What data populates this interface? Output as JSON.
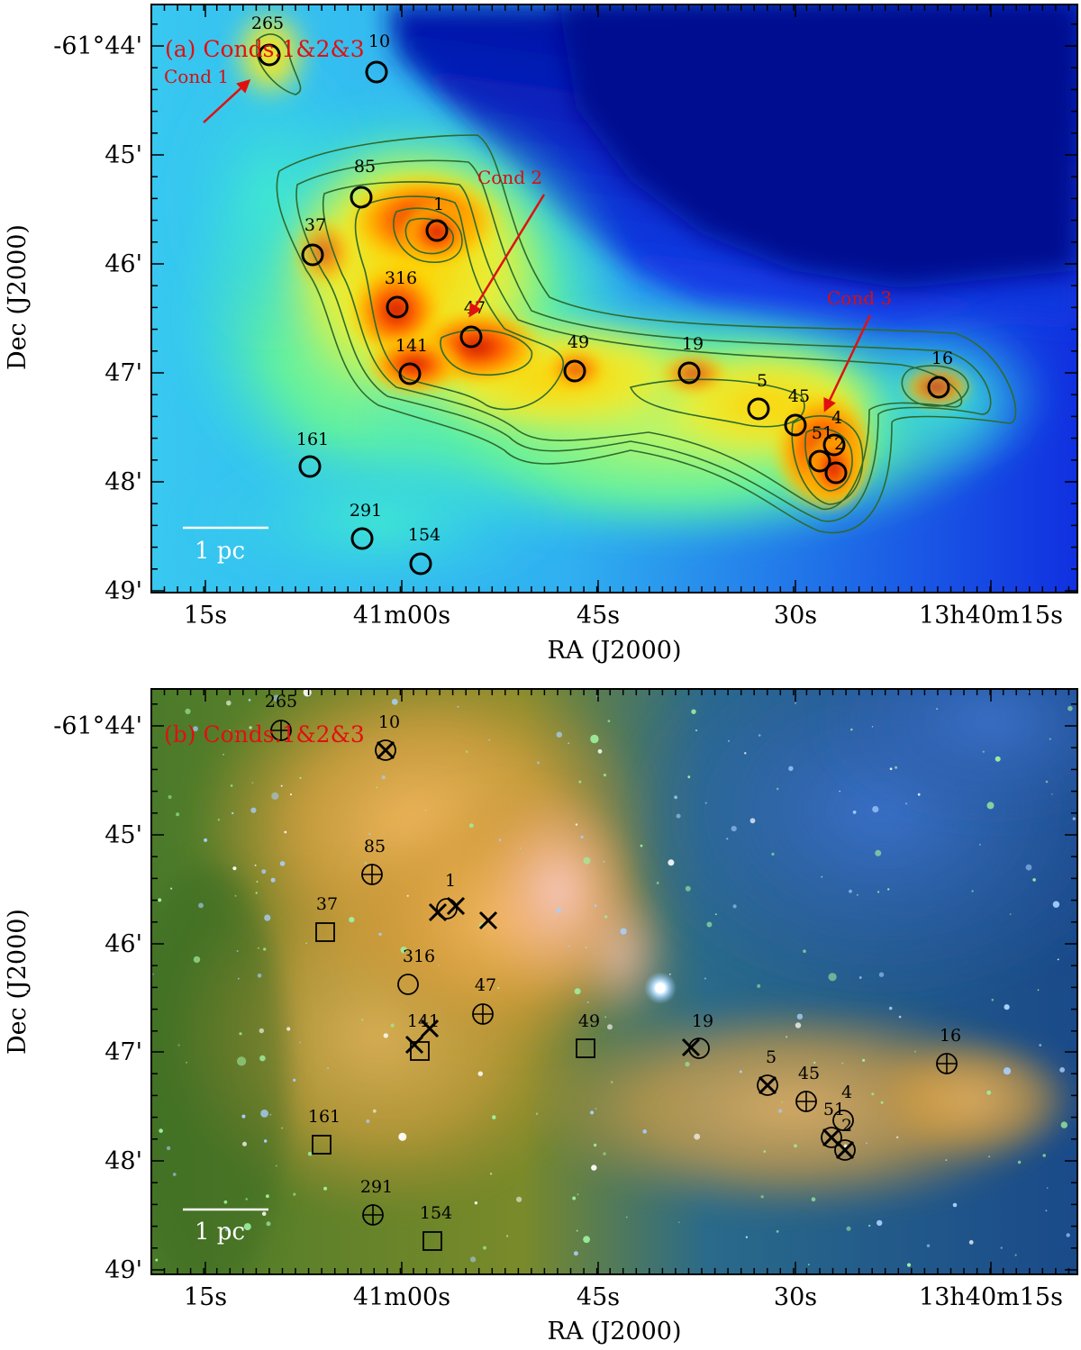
{
  "axes": {
    "xlabel": "RA (J2000)",
    "ylabel": "Dec (J2000)",
    "x_ticks": [
      "15s",
      "41m00s",
      "45s",
      "30s",
      "13h40m15s"
    ],
    "y_ticks": [
      "-61°44'",
      "45'",
      "46'",
      "47'",
      "48'",
      "49'"
    ]
  },
  "scale_bar": "1 pc",
  "panel_a": {
    "title": "(a) Conds.1&2&3",
    "conds": [
      {
        "label": "Cond 1"
      },
      {
        "label": "Cond 2"
      },
      {
        "label": "Cond 3"
      }
    ],
    "sources": [
      "265",
      "10",
      "85",
      "1",
      "37",
      "316",
      "47",
      "141",
      "49",
      "19",
      "5",
      "45",
      "4",
      "51",
      "2",
      "16",
      "161",
      "291",
      "154"
    ]
  },
  "panel_b": {
    "title": "(b) Conds.1&2&3",
    "sources": [
      "265",
      "10",
      "85",
      "1",
      "37",
      "316",
      "47",
      "141",
      "49",
      "19",
      "5",
      "45",
      "4",
      "51",
      "2",
      "16",
      "161",
      "291",
      "154"
    ]
  },
  "colors": {
    "marker": "#000000",
    "annotation": "#e01010",
    "contour": "#2e6b2e"
  }
}
